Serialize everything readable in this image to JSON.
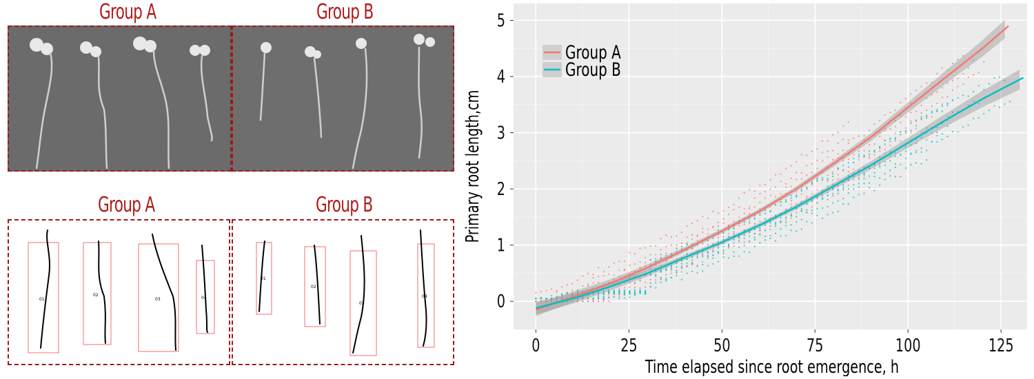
{
  "panels": {
    "photo_titles": [
      "Group A",
      "Group B"
    ],
    "mask_titles": [
      "Group A",
      "Group B"
    ],
    "mask_labels_a": [
      "01",
      "02",
      "03",
      "04"
    ],
    "mask_labels_b": [
      "01",
      "02",
      "03",
      "04"
    ]
  },
  "chart_data": {
    "type": "line",
    "title": "",
    "xlabel": "Time elapsed since root emergence, h",
    "ylabel": "Primary root length,cm",
    "xlim": [
      -6,
      132
    ],
    "ylim": [
      -0.5,
      5.3
    ],
    "xticks": [
      0,
      25,
      50,
      75,
      100,
      125
    ],
    "yticks": [
      0,
      1,
      2,
      3,
      4,
      5
    ],
    "grid": true,
    "legend_position": "top-left",
    "series": [
      {
        "name": "Group A",
        "color": "#f8766d",
        "x": [
          0,
          10,
          20,
          30,
          40,
          50,
          60,
          70,
          80,
          90,
          100,
          110,
          120,
          127
        ],
        "y": [
          -0.15,
          0.08,
          0.32,
          0.6,
          0.92,
          1.25,
          1.6,
          2.0,
          2.45,
          2.92,
          3.45,
          3.98,
          4.5,
          4.9
        ]
      },
      {
        "name": "Group B",
        "color": "#00bfc4",
        "x": [
          0,
          10,
          20,
          30,
          40,
          50,
          60,
          70,
          80,
          90,
          100,
          110,
          120,
          131
        ],
        "y": [
          -0.12,
          0.05,
          0.26,
          0.5,
          0.78,
          1.05,
          1.35,
          1.68,
          2.05,
          2.42,
          2.82,
          3.22,
          3.6,
          3.98
        ]
      }
    ]
  }
}
